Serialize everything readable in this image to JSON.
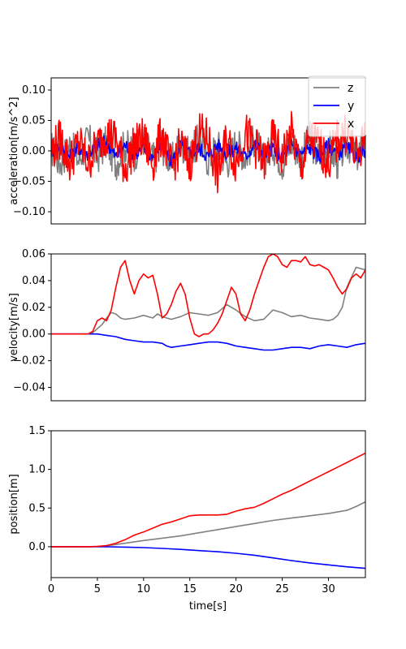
{
  "figure": {
    "xlabel": "time[s]"
  },
  "colors": {
    "z": "#808080",
    "y": "#0000ff",
    "x": "#ff0000"
  },
  "chart_data": [
    {
      "type": "line",
      "ylabel": "acceleration[m/s^2]",
      "xlim": [
        0,
        34
      ],
      "ylim": [
        -0.12,
        0.12
      ],
      "x_ticks": [],
      "y_ticks": [
        -0.1,
        -0.05,
        0.0,
        0.05,
        0.1
      ],
      "y_tick_labels": [
        "−0.10",
        "−0.05",
        "0.00",
        "0.05",
        "0.10"
      ],
      "legend": {
        "position": "top-right",
        "entries": [
          "z",
          "y",
          "x"
        ]
      },
      "series": [
        {
          "name": "z",
          "color": "#808080",
          "x": [
            0,
            1,
            2,
            3,
            4,
            5,
            6,
            7,
            8,
            9,
            10,
            11,
            12,
            13,
            14,
            15,
            16,
            17,
            18,
            19,
            20,
            21,
            22,
            23,
            24,
            25,
            26,
            27,
            28,
            29,
            30,
            31,
            32,
            33,
            34
          ],
          "y": [
            0.005,
            -0.02,
            0.01,
            -0.015,
            0.02,
            -0.01,
            0.015,
            -0.02,
            0.01,
            -0.005,
            0.02,
            -0.015,
            0.01,
            -0.02,
            0.015,
            -0.01,
            0.02,
            -0.015,
            0.01,
            -0.02,
            0.015,
            -0.01,
            0.02,
            -0.015,
            0.01,
            -0.02,
            0.015,
            -0.01,
            0.02,
            -0.015,
            0.01,
            -0.02,
            0.015,
            -0.01,
            0.02
          ],
          "amplitude": 0.03
        },
        {
          "name": "y",
          "color": "#0000ff",
          "x": [
            0,
            1,
            2,
            3,
            4,
            5,
            6,
            7,
            8,
            9,
            10,
            11,
            12,
            13,
            14,
            15,
            16,
            17,
            18,
            19,
            20,
            21,
            22,
            23,
            24,
            25,
            26,
            27,
            28,
            29,
            30,
            31,
            32,
            33,
            34
          ],
          "y": [
            0.0,
            0.01,
            -0.01,
            0.005,
            -0.005,
            0.01,
            0.015,
            -0.01,
            0.01,
            -0.005,
            0.005,
            -0.01,
            0.01,
            -0.02,
            0.01,
            -0.005,
            0.005,
            -0.01,
            0.01,
            -0.005,
            0.005,
            -0.01,
            0.01,
            -0.005,
            0.005,
            -0.01,
            0.01,
            -0.005,
            0.005,
            -0.01,
            0.01,
            -0.005,
            0.005,
            -0.01,
            0.0
          ],
          "amplitude": 0.012
        },
        {
          "name": "x",
          "color": "#ff0000",
          "x": [
            0,
            1,
            2,
            3,
            4,
            5,
            6,
            7,
            8,
            9,
            10,
            11,
            12,
            13,
            14,
            15,
            16,
            17,
            18,
            19,
            20,
            21,
            22,
            23,
            24,
            25,
            26,
            27,
            28,
            29,
            30,
            31,
            32,
            33,
            34
          ],
          "y": [
            0.0,
            0.02,
            -0.02,
            0.015,
            -0.02,
            0.01,
            0.03,
            0.02,
            -0.03,
            0.01,
            0.02,
            -0.02,
            0.03,
            -0.03,
            0.01,
            -0.02,
            0.03,
            0.02,
            -0.04,
            0.02,
            -0.02,
            0.03,
            0.01,
            -0.02,
            0.02,
            -0.01,
            0.03,
            -0.03,
            0.02,
            0.01,
            -0.02,
            0.02,
            0.03,
            -0.01,
            0.02
          ],
          "amplitude": 0.035
        }
      ]
    },
    {
      "type": "line",
      "ylabel": "velocity[m/s]",
      "xlim": [
        0,
        34
      ],
      "ylim": [
        -0.05,
        0.06
      ],
      "x_ticks": [],
      "y_ticks": [
        -0.04,
        -0.02,
        0.0,
        0.02,
        0.04,
        0.06
      ],
      "y_tick_labels": [
        "−0.04",
        "−0.02",
        "0.00",
        "0.02",
        "0.04",
        "0.06"
      ],
      "series": [
        {
          "name": "z",
          "color": "#808080",
          "x": [
            0,
            4,
            4.5,
            5,
            5.5,
            6,
            6.5,
            7,
            7.5,
            8,
            9,
            10,
            11,
            11.5,
            12,
            13,
            14,
            15,
            16,
            17,
            18,
            19,
            20,
            21,
            22,
            23,
            24,
            25,
            26,
            27,
            28,
            29,
            30,
            30.5,
            31,
            31.5,
            32,
            33,
            34
          ],
          "y": [
            0,
            0,
            0.001,
            0.004,
            0.007,
            0.012,
            0.016,
            0.015,
            0.012,
            0.011,
            0.012,
            0.014,
            0.012,
            0.015,
            0.013,
            0.011,
            0.013,
            0.016,
            0.015,
            0.014,
            0.016,
            0.022,
            0.018,
            0.013,
            0.01,
            0.011,
            0.018,
            0.016,
            0.013,
            0.014,
            0.012,
            0.011,
            0.01,
            0.011,
            0.014,
            0.02,
            0.035,
            0.05,
            0.048
          ]
        },
        {
          "name": "y",
          "color": "#0000ff",
          "x": [
            0,
            5,
            6,
            7,
            8,
            9,
            10,
            11,
            12,
            12.5,
            13,
            14,
            15,
            16,
            17,
            18,
            19,
            20,
            21,
            22,
            23,
            24,
            25,
            26,
            27,
            28,
            29,
            30,
            31,
            32,
            33,
            34
          ],
          "y": [
            0,
            0,
            -0.001,
            -0.002,
            -0.004,
            -0.005,
            -0.006,
            -0.006,
            -0.007,
            -0.009,
            -0.01,
            -0.009,
            -0.008,
            -0.007,
            -0.006,
            -0.006,
            -0.007,
            -0.009,
            -0.01,
            -0.011,
            -0.012,
            -0.012,
            -0.011,
            -0.01,
            -0.01,
            -0.011,
            -0.009,
            -0.008,
            -0.009,
            -0.01,
            -0.008,
            -0.007
          ]
        },
        {
          "name": "x",
          "color": "#ff0000",
          "x": [
            0,
            4,
            4.5,
            5,
            5.5,
            6,
            6.5,
            7,
            7.5,
            8,
            8.5,
            9,
            9.5,
            10,
            10.5,
            11,
            11.5,
            12,
            12.5,
            13,
            13.5,
            14,
            14.5,
            15,
            15.5,
            16,
            16.5,
            17,
            17.5,
            18,
            18.5,
            19,
            19.5,
            20,
            20.5,
            21,
            21.5,
            22,
            22.5,
            23,
            23.5,
            24,
            24.5,
            25,
            25.5,
            26,
            26.5,
            27,
            27.5,
            28,
            28.5,
            29,
            29.5,
            30,
            30.5,
            31,
            31.5,
            32,
            32.5,
            33,
            33.5,
            34
          ],
          "y": [
            0,
            0,
            0.002,
            0.01,
            0.012,
            0.01,
            0.018,
            0.035,
            0.05,
            0.055,
            0.04,
            0.03,
            0.04,
            0.045,
            0.042,
            0.044,
            0.03,
            0.012,
            0.015,
            0.022,
            0.032,
            0.038,
            0.03,
            0.012,
            0.0,
            -0.002,
            0.0,
            0.0,
            0.003,
            0.008,
            0.015,
            0.025,
            0.035,
            0.03,
            0.015,
            0.01,
            0.018,
            0.03,
            0.04,
            0.05,
            0.058,
            0.06,
            0.058,
            0.052,
            0.05,
            0.055,
            0.055,
            0.054,
            0.058,
            0.052,
            0.051,
            0.052,
            0.05,
            0.048,
            0.042,
            0.035,
            0.03,
            0.034,
            0.042,
            0.045,
            0.042,
            0.048
          ]
        }
      ]
    },
    {
      "type": "line",
      "ylabel": "position[m]",
      "xlabel": "time[s]",
      "xlim": [
        0,
        34
      ],
      "ylim": [
        -0.4,
        1.5
      ],
      "x_ticks": [
        0,
        5,
        10,
        15,
        20,
        25,
        30
      ],
      "x_tick_labels": [
        "0",
        "5",
        "10",
        "15",
        "20",
        "25",
        "30"
      ],
      "y_ticks": [
        0.0,
        0.5,
        1.0,
        1.5
      ],
      "y_tick_labels": [
        "0.0",
        "0.5",
        "1.0",
        "1.5"
      ],
      "series": [
        {
          "name": "z",
          "color": "#808080",
          "x": [
            0,
            4,
            5,
            6,
            7,
            8,
            10,
            12,
            14,
            16,
            18,
            20,
            22,
            24,
            26,
            28,
            30,
            32,
            33,
            34
          ],
          "y": [
            0,
            0,
            0.003,
            0.012,
            0.028,
            0.045,
            0.08,
            0.11,
            0.14,
            0.18,
            0.22,
            0.26,
            0.3,
            0.34,
            0.37,
            0.4,
            0.43,
            0.47,
            0.52,
            0.58
          ]
        },
        {
          "name": "y",
          "color": "#0000ff",
          "x": [
            0,
            5,
            6,
            8,
            10,
            12,
            14,
            16,
            18,
            20,
            22,
            24,
            26,
            28,
            30,
            32,
            34
          ],
          "y": [
            0,
            0,
            -0.001,
            -0.005,
            -0.012,
            -0.022,
            -0.035,
            -0.05,
            -0.065,
            -0.085,
            -0.11,
            -0.145,
            -0.18,
            -0.21,
            -0.235,
            -0.26,
            -0.28
          ]
        },
        {
          "name": "x",
          "color": "#ff0000",
          "x": [
            0,
            4,
            5,
            6,
            7,
            8,
            9,
            10,
            11,
            12,
            13,
            14,
            15,
            16,
            17,
            18,
            19,
            20,
            21,
            22,
            23,
            24,
            25,
            26,
            27,
            28,
            29,
            30,
            31,
            32,
            33,
            34
          ],
          "y": [
            0,
            0,
            0.003,
            0.015,
            0.045,
            0.09,
            0.15,
            0.19,
            0.24,
            0.29,
            0.32,
            0.36,
            0.4,
            0.41,
            0.41,
            0.41,
            0.42,
            0.46,
            0.49,
            0.51,
            0.56,
            0.62,
            0.68,
            0.73,
            0.79,
            0.85,
            0.91,
            0.97,
            1.03,
            1.09,
            1.15,
            1.21
          ]
        }
      ]
    }
  ]
}
